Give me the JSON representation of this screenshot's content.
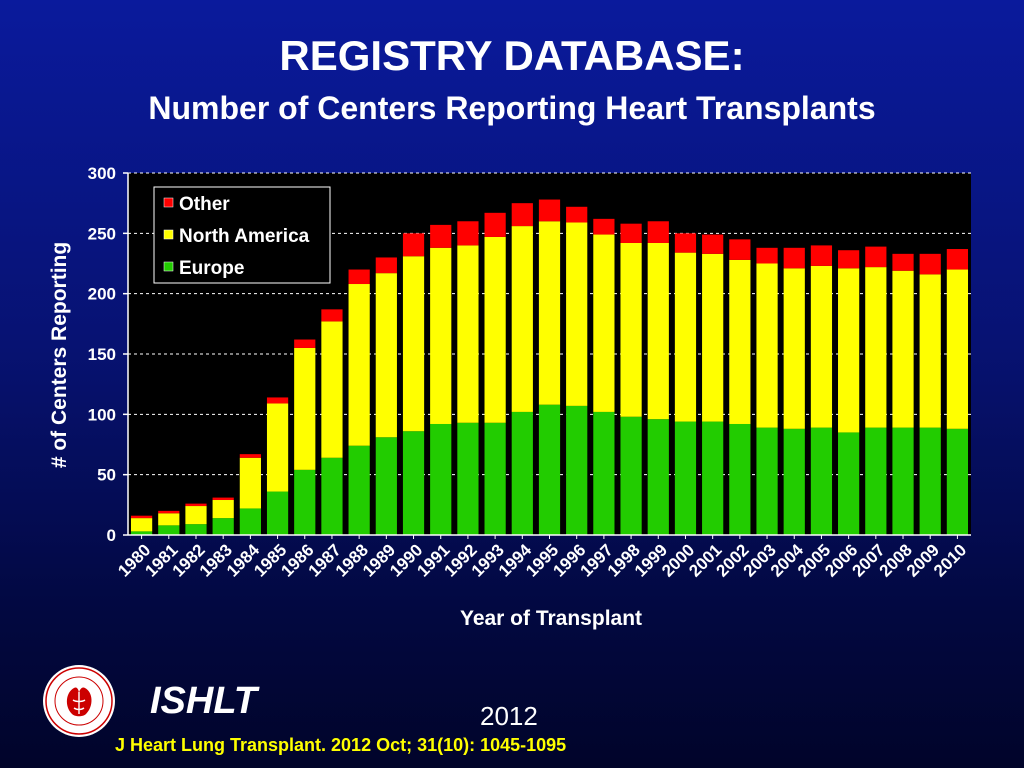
{
  "header": {
    "title": "REGISTRY DATABASE:",
    "subtitle": "Number of Centers Reporting Heart Transplants"
  },
  "footer": {
    "org": "ISHLT",
    "year": "2012",
    "citation": "J Heart Lung Transplant.  2012 Oct; 31(10): 1045-1095",
    "logo_text": "INTERNATIONAL SOCIETY FOR HEART & LUNG TRANSPLANTATION"
  },
  "colors": {
    "background": "#071272",
    "europe": "#22cc00",
    "north_america": "#ffff00",
    "other": "#ff0000",
    "citation": "#ffff00"
  },
  "chart_data": {
    "type": "bar",
    "stacked": true,
    "title": "",
    "xlabel": "Year of Transplant",
    "ylabel": "# of Centers Reporting",
    "ylim": [
      0,
      300
    ],
    "yticks": [
      0,
      50,
      100,
      150,
      200,
      250,
      300
    ],
    "grid": "horizontal dashed",
    "legend_position": "top-left",
    "categories": [
      "1980",
      "1981",
      "1982",
      "1983",
      "1984",
      "1985",
      "1986",
      "1987",
      "1988",
      "1989",
      "1990",
      "1991",
      "1992",
      "1993",
      "1994",
      "1995",
      "1996",
      "1997",
      "1998",
      "1999",
      "2000",
      "2001",
      "2002",
      "2003",
      "2004",
      "2005",
      "2006",
      "2007",
      "2008",
      "2009",
      "2010"
    ],
    "series": [
      {
        "name": "Europe",
        "color": "#22cc00",
        "values": [
          3,
          8,
          9,
          14,
          22,
          36,
          54,
          64,
          74,
          81,
          86,
          92,
          93,
          93,
          102,
          108,
          107,
          102,
          98,
          96,
          94,
          94,
          92,
          89,
          88,
          89,
          85,
          89,
          89,
          89,
          88
        ]
      },
      {
        "name": "North America",
        "color": "#ffff00",
        "values": [
          11,
          10,
          15,
          15,
          42,
          73,
          101,
          113,
          134,
          136,
          145,
          146,
          147,
          154,
          154,
          152,
          152,
          147,
          144,
          146,
          140,
          139,
          136,
          136,
          133,
          134,
          136,
          133,
          130,
          127,
          132
        ]
      },
      {
        "name": "Other",
        "color": "#ff0000",
        "values": [
          2,
          2,
          2,
          2,
          3,
          5,
          7,
          10,
          12,
          13,
          19,
          19,
          20,
          20,
          19,
          18,
          13,
          13,
          16,
          18,
          16,
          16,
          17,
          13,
          17,
          17,
          15,
          17,
          14,
          17,
          17
        ]
      }
    ],
    "legend_order": [
      "Other",
      "North America",
      "Europe"
    ]
  }
}
